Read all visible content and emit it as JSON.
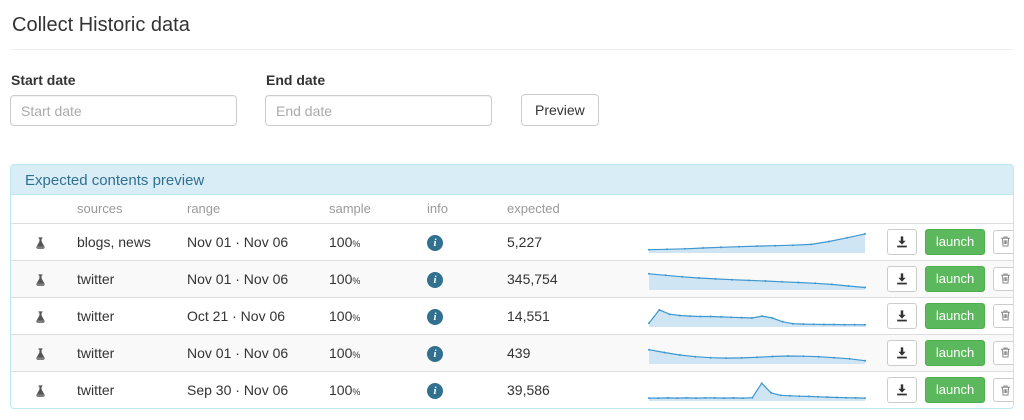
{
  "page": {
    "title": "Collect Historic data"
  },
  "form": {
    "start_label": "Start date",
    "start_placeholder": "Start date",
    "end_label": "End date",
    "end_placeholder": "End date",
    "preview_button": "Preview"
  },
  "panel": {
    "title": "Expected contents preview",
    "columns": {
      "sources": "sources",
      "range": "range",
      "sample": "sample",
      "info": "info",
      "expected": "expected"
    },
    "actions": {
      "launch_label": "launch",
      "download_icon": "download-icon",
      "delete_icon": "trash-icon",
      "row_icon": "flask-icon",
      "info_icon": "info-icon"
    },
    "rows": [
      {
        "sources": "blogs, news",
        "range": "Nov 01 · Nov 06",
        "sample": "100",
        "sample_unit": "%",
        "expected": "5,227",
        "spark": [
          0.12,
          0.14,
          0.17,
          0.21,
          0.25,
          0.28,
          0.31,
          0.33,
          0.36,
          0.4,
          0.55,
          0.75,
          0.95
        ]
      },
      {
        "sources": "twitter",
        "range": "Nov 01 · Nov 06",
        "sample": "100",
        "sample_unit": "%",
        "expected": "345,754",
        "spark": [
          0.8,
          0.72,
          0.64,
          0.58,
          0.53,
          0.49,
          0.45,
          0.42,
          0.38,
          0.34,
          0.3,
          0.24,
          0.16,
          0.08
        ]
      },
      {
        "sources": "twitter",
        "range": "Oct 21 · Nov 06",
        "sample": "100",
        "sample_unit": "%",
        "expected": "14,551",
        "spark": [
          0.15,
          0.85,
          0.62,
          0.55,
          0.52,
          0.5,
          0.5,
          0.48,
          0.46,
          0.44,
          0.42,
          0.52,
          0.42,
          0.22,
          0.12,
          0.1,
          0.09,
          0.08,
          0.08,
          0.07,
          0.07,
          0.06
        ]
      },
      {
        "sources": "twitter",
        "range": "Nov 01 · Nov 06",
        "sample": "100",
        "sample_unit": "%",
        "expected": "439",
        "spark": [
          0.7,
          0.55,
          0.42,
          0.33,
          0.28,
          0.26,
          0.27,
          0.3,
          0.34,
          0.37,
          0.36,
          0.33,
          0.28,
          0.22,
          0.12
        ]
      },
      {
        "sources": "twitter",
        "range": "Sep 30 · Nov 06",
        "sample": "100",
        "sample_unit": "%",
        "expected": "39,586",
        "spark": [
          0.1,
          0.1,
          0.11,
          0.1,
          0.11,
          0.1,
          0.11,
          0.11,
          0.1,
          0.11,
          0.1,
          0.12,
          0.88,
          0.38,
          0.25,
          0.22,
          0.2,
          0.19,
          0.17,
          0.15,
          0.13,
          0.12,
          0.11,
          0.1
        ]
      }
    ]
  },
  "colors": {
    "panel_header_bg": "#d9edf7",
    "panel_border": "#bce8f1",
    "panel_header_text": "#31708f",
    "spark_line": "#3f97d0",
    "spark_fill": "#cfe5f4",
    "launch_green": "#5cb85c",
    "info_badge": "#31708f"
  }
}
